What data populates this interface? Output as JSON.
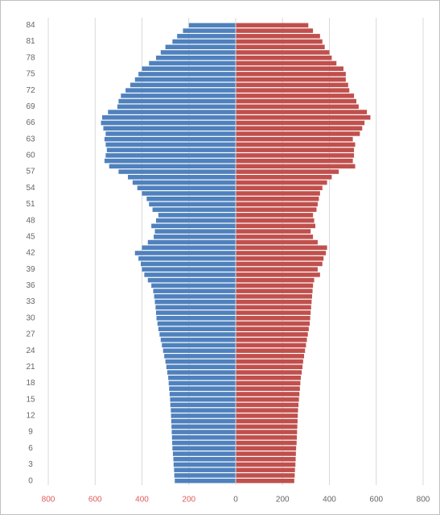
{
  "chart_data": {
    "type": "population-pyramid",
    "categories": [
      0,
      null,
      null,
      3,
      null,
      null,
      6,
      null,
      null,
      9,
      null,
      null,
      12,
      null,
      null,
      15,
      null,
      null,
      18,
      null,
      null,
      21,
      null,
      null,
      24,
      null,
      null,
      27,
      null,
      null,
      30,
      null,
      null,
      33,
      null,
      null,
      36,
      null,
      null,
      39,
      null,
      null,
      42,
      null,
      null,
      45,
      null,
      null,
      48,
      null,
      null,
      51,
      null,
      null,
      54,
      null,
      null,
      57,
      null,
      null,
      60,
      null,
      null,
      63,
      null,
      null,
      66,
      null,
      null,
      69,
      null,
      null,
      72,
      null,
      null,
      75,
      null,
      null,
      78,
      null,
      null,
      81,
      null,
      null,
      84
    ],
    "series": [
      {
        "color": "#4f81bd",
        "values": [
          -260,
          -262,
          -263,
          -265,
          -266,
          -268,
          -270,
          -271,
          -272,
          -273,
          -274,
          -275,
          -276,
          -277,
          -279,
          -280,
          -282,
          -284,
          -286,
          -288,
          -292,
          -296,
          -300,
          -305,
          -310,
          -315,
          -320,
          -325,
          -330,
          -334,
          -338,
          -340,
          -342,
          -345,
          -348,
          -352,
          -360,
          -375,
          -390,
          -400,
          -405,
          -415,
          -430,
          -400,
          -375,
          -350,
          -345,
          -360,
          -340,
          -330,
          -355,
          -370,
          -380,
          -400,
          -420,
          -440,
          -460,
          -500,
          -540,
          -560,
          -555,
          -550,
          -555,
          -560,
          -555,
          -565,
          -575,
          -570,
          -545,
          -505,
          -500,
          -490,
          -470,
          -450,
          -430,
          -415,
          -400,
          -370,
          -340,
          -320,
          -300,
          -270,
          -250,
          -225,
          -200
        ]
      },
      {
        "color": "#c0504d",
        "values": [
          250,
          252,
          253,
          255,
          256,
          257,
          258,
          260,
          261,
          262,
          263,
          264,
          265,
          266,
          268,
          270,
          272,
          274,
          276,
          278,
          282,
          285,
          288,
          292,
          296,
          300,
          304,
          308,
          312,
          316,
          318,
          320,
          322,
          324,
          326,
          328,
          330,
          335,
          360,
          350,
          370,
          375,
          385,
          390,
          350,
          330,
          320,
          340,
          335,
          330,
          345,
          350,
          355,
          360,
          370,
          390,
          410,
          440,
          510,
          500,
          505,
          505,
          510,
          500,
          530,
          540,
          550,
          575,
          560,
          525,
          515,
          505,
          485,
          480,
          470,
          470,
          460,
          430,
          410,
          400,
          380,
          370,
          360,
          330,
          310
        ]
      }
    ],
    "xlim": [
      -800,
      800
    ],
    "xticks": [
      {
        "value": -800,
        "label": "800"
      },
      {
        "value": -600,
        "label": "600"
      },
      {
        "value": -400,
        "label": "400"
      },
      {
        "value": -200,
        "label": "200"
      },
      0,
      200,
      400,
      600,
      800
    ],
    "grid": true
  }
}
